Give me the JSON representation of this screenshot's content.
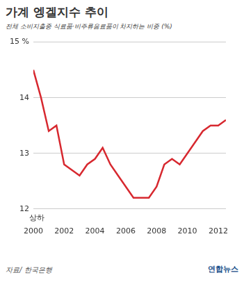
{
  "chart_data": {
    "type": "line",
    "title": "가계 엥겔지수 추이",
    "subtitle": "전체 소비지출중 식료품·비주류음료품이 차지하는 비중 (%)",
    "categories": [
      "2000",
      null,
      null,
      null,
      "2002",
      null,
      null,
      null,
      "2004",
      null,
      null,
      null,
      "2006",
      null,
      null,
      null,
      "2008",
      null,
      null,
      null,
      "2010",
      null,
      null,
      null,
      "2012",
      null
    ],
    "values": [
      14.5,
      14.0,
      13.4,
      13.5,
      12.8,
      12.7,
      12.6,
      12.8,
      12.9,
      13.1,
      12.8,
      12.6,
      12.4,
      12.2,
      12.2,
      12.2,
      12.4,
      12.8,
      12.9,
      12.8,
      13.0,
      13.2,
      13.4,
      13.5,
      13.5,
      13.6
    ],
    "color": "#d7282f",
    "ylim": [
      12,
      15
    ],
    "yticks": [
      12,
      13,
      14,
      {
        "value": 15,
        "label": "15 %"
      }
    ],
    "grid": true,
    "annotations": [
      "상하"
    ],
    "source": "자료/ 한국은행",
    "credit": "연합뉴스"
  }
}
